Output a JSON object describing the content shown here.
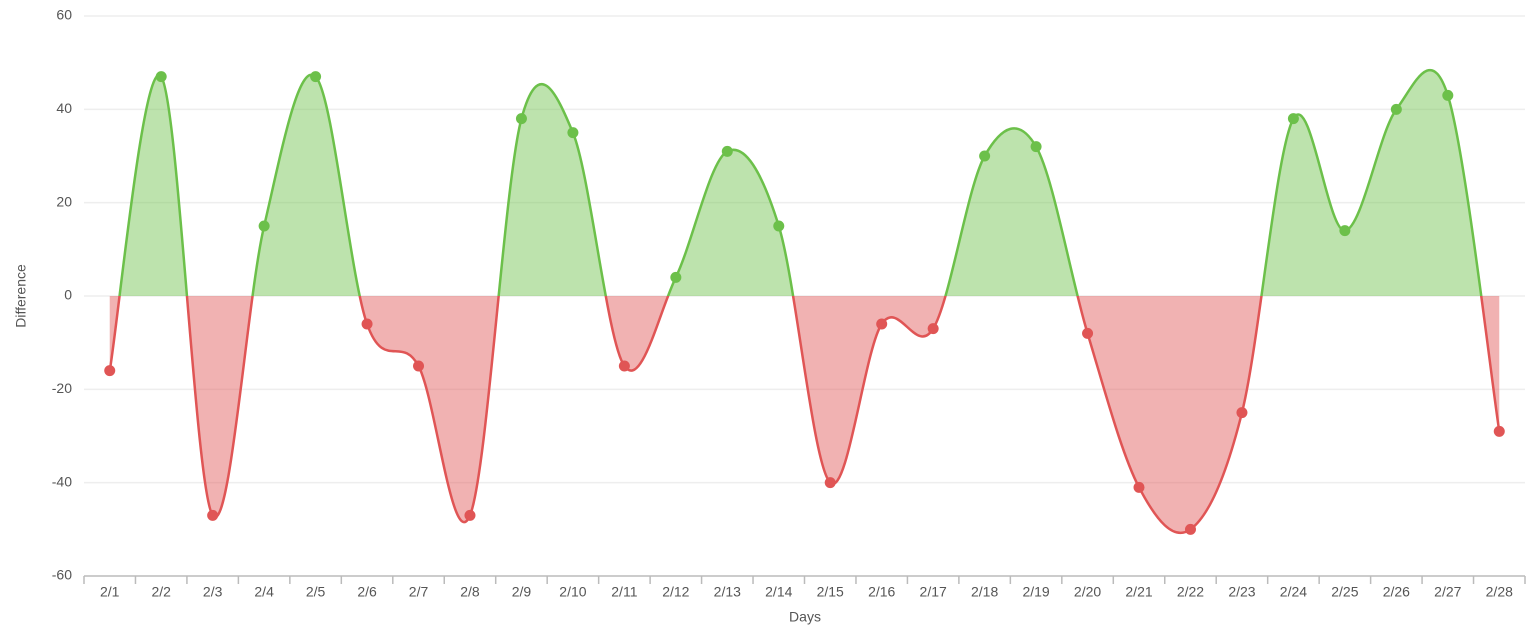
{
  "chart_data": {
    "type": "area-spline",
    "x_label": "Days",
    "y_label": "Difference",
    "categories": [
      "2/1",
      "2/2",
      "2/3",
      "2/4",
      "2/5",
      "2/6",
      "2/7",
      "2/8",
      "2/9",
      "2/10",
      "2/11",
      "2/12",
      "2/13",
      "2/14",
      "2/15",
      "2/16",
      "2/17",
      "2/18",
      "2/19",
      "2/20",
      "2/21",
      "2/22",
      "2/23",
      "2/24",
      "2/25",
      "2/26",
      "2/27",
      "2/28"
    ],
    "values": [
      -16,
      47,
      -47,
      15,
      47,
      -6,
      -15,
      -47,
      38,
      35,
      -15,
      4,
      31,
      15,
      -40,
      -6,
      -7,
      30,
      32,
      -8,
      -41,
      -50,
      -25,
      38,
      14,
      40,
      43,
      -29
    ],
    "positive_color": "#6cc04a",
    "negative_color": "#e05555",
    "ylim": [
      -60,
      60
    ],
    "yticks": [
      -60,
      -40,
      -20,
      0,
      20,
      40,
      60
    ],
    "grid": true
  }
}
